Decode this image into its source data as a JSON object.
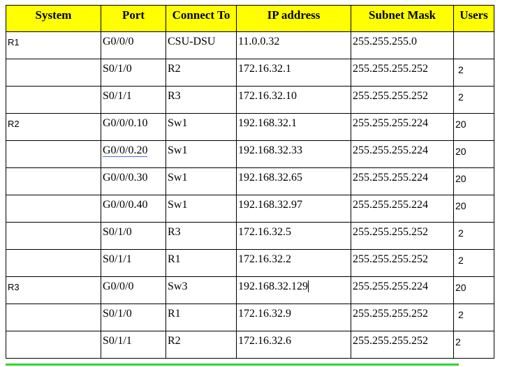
{
  "table": {
    "headers": [
      "System",
      "Port",
      "Connect To",
      "IP address",
      "Subnet Mask",
      "Users"
    ],
    "rows": [
      {
        "system": "R1",
        "port": "G0/0/0",
        "connect_to": "CSU-DSU",
        "ip": "11.0.0.32",
        "mask": "255.255.255.0",
        "users": ""
      },
      {
        "system": "",
        "port": "S0/1/0",
        "connect_to": "R2",
        "ip": "172.16.32.1",
        "mask": "255.255.255.252",
        "users": "2"
      },
      {
        "system": "",
        "port": "S0/1/1",
        "connect_to": "R3",
        "ip": "172.16.32.10",
        "mask": "255.255.255.252",
        "users": "2"
      },
      {
        "system": "R2",
        "port": "G0/0/0.10",
        "connect_to": "Sw1",
        "ip": "192.168.32.1",
        "mask": "255.255.255.224",
        "users": "20"
      },
      {
        "system": "",
        "port": "G0/0/0.20",
        "connect_to": "Sw1",
        "ip": "192.168.32.33",
        "mask": "255.255.255.224",
        "users": "20"
      },
      {
        "system": "",
        "port": "G0/0/0.30",
        "connect_to": "Sw1",
        "ip": "192.168.32.65",
        "mask": "255.255.255.224",
        "users": "20"
      },
      {
        "system": "",
        "port": "G0/0/0.40",
        "connect_to": "Sw1",
        "ip": "192.168.32.97",
        "mask": "255.255.255.224",
        "users": "20"
      },
      {
        "system": "",
        "port": "S0/1/0",
        "connect_to": "R3",
        "ip": "172.16.32.5",
        "mask": "255.255.255.252",
        "users": "2"
      },
      {
        "system": "",
        "port": "S0/1/1",
        "connect_to": "R1",
        "ip": "172.16.32.2",
        "mask": "255.255.255.252",
        "users": "2"
      },
      {
        "system": "R3",
        "port": "G0/0/0",
        "connect_to": "Sw3",
        "ip": "192.168.32.129",
        "mask": "255.255.255.224",
        "users": "20"
      },
      {
        "system": "",
        "port": "S0/1/0",
        "connect_to": "R1",
        "ip": "172.16.32.9",
        "mask": "255.255.255.252",
        "users": "2"
      },
      {
        "system": "",
        "port": "S0/1/1",
        "connect_to": "R2",
        "ip": "172.16.32.6",
        "mask": "255.255.255.252",
        "users": "2"
      }
    ]
  },
  "colors": {
    "header_bg": "#ffff00",
    "underline": "#32d432"
  }
}
